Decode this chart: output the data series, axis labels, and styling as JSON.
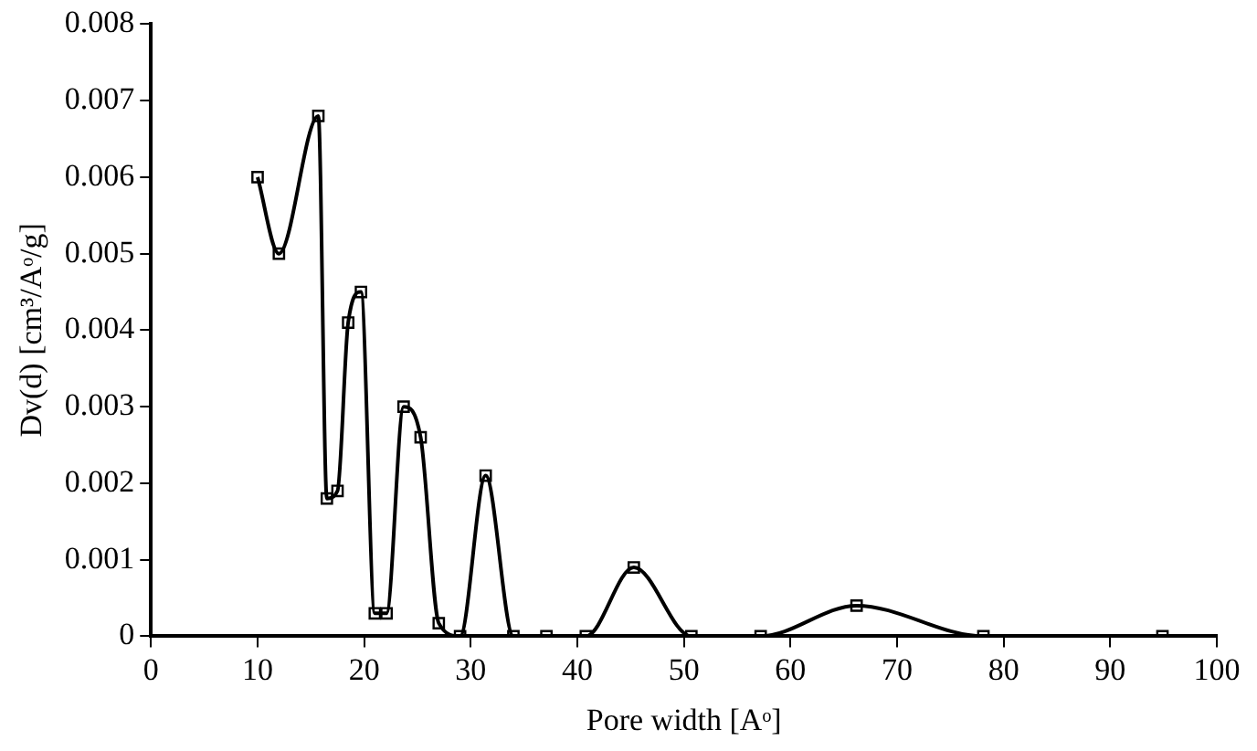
{
  "chart_data": {
    "type": "line",
    "xlabel": "Pore width [Aᵒ]",
    "ylabel": "Dv(d) [cm³/Aᵒ/g]",
    "x": [
      10,
      12,
      15.7,
      16.5,
      17.5,
      18.5,
      19.7,
      21,
      22.1,
      23.7,
      25.3,
      27,
      29,
      31.4,
      34,
      37.1,
      40.8,
      45.3,
      50.7,
      57.2,
      66.2,
      78.1,
      94.9
    ],
    "series": [
      {
        "color": "#000000",
        "values": [
          0.006,
          0.005,
          0.0068,
          0.0018,
          0.0019,
          0.0041,
          0.0045,
          0.0003,
          0.0003,
          0.003,
          0.0026,
          0.00017,
          0,
          0.0021,
          0,
          0,
          0,
          0.0009,
          0,
          0,
          0.0004,
          0,
          0
        ]
      }
    ],
    "xlim": [
      0,
      100
    ],
    "xticks": [
      0,
      10,
      20,
      30,
      40,
      50,
      60,
      70,
      80,
      90,
      100
    ],
    "ylim": [
      0,
      0.008
    ],
    "yticks": [
      0,
      0.001,
      0.002,
      0.003,
      0.004,
      0.005,
      0.006,
      0.007,
      0.008
    ],
    "grid": false,
    "legend": false,
    "marker": "square",
    "line_style": "solid"
  }
}
